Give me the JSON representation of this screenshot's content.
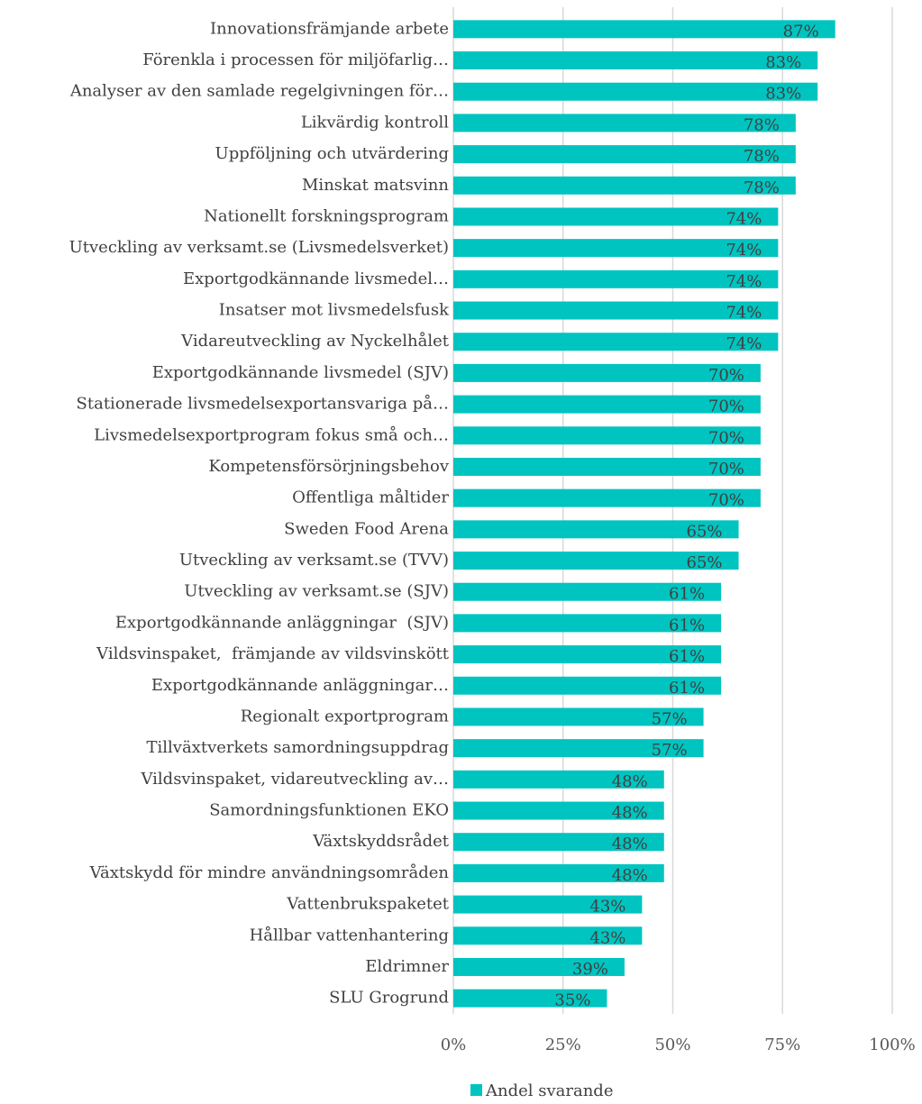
{
  "chart_data": {
    "type": "barh",
    "categories": [
      "Innovationsfrämjande arbete",
      "Förenkla i processen för miljöfarlig…",
      "Analyser av den samlade regelgivningen för…",
      "Likvärdig kontroll",
      "Uppföljning och utvärdering",
      "Minskat matsvinn",
      "Nationellt forskningsprogram",
      "Utveckling av verksamt.se (Livsmedelsverket)",
      "Exportgodkännande livsmedel…",
      "Insatser mot livsmedelsfusk",
      "Vidareutveckling av Nyckelhålet",
      "Exportgodkännande livsmedel (SJV)",
      "Stationerade livsmedelsexportansvariga på…",
      "Livsmedelsexportprogram fokus små och…",
      "Kompetensförsörjningsbehov",
      "Offentliga måltider",
      "Sweden Food Arena",
      "Utveckling av verksamt.se (TVV)",
      "Utveckling av verksamt.se (SJV)",
      "Exportgodkännande anläggningar  (SJV)",
      "Vildsvinspaket,  främjande av vildsvinskött",
      "Exportgodkännande anläggningar…",
      "Regionalt exportprogram",
      "Tillväxtverkets samordningsuppdrag",
      "Vildsvinspaket, vidareutveckling av…",
      "Samordningsfunktionen EKO",
      "Växtskyddsrådet",
      "Växtskydd för mindre användningsområden",
      "Vattenbrukspaketet",
      "Hållbar vattenhantering",
      "Eldrimner",
      "SLU Grogrund"
    ],
    "series": [
      {
        "name": "Andel svarande",
        "color": "#00c4c0",
        "values": [
          87,
          83,
          83,
          78,
          78,
          78,
          74,
          74,
          74,
          74,
          74,
          70,
          70,
          70,
          70,
          70,
          65,
          65,
          61,
          61,
          61,
          61,
          57,
          57,
          48,
          48,
          48,
          48,
          43,
          43,
          39,
          35
        ],
        "value_labels": [
          "87%",
          "83%",
          "83%",
          "78%",
          "78%",
          "78%",
          "74%",
          "74%",
          "74%",
          "74%",
          "74%",
          "70%",
          "70%",
          "70%",
          "70%",
          "70%",
          "65%",
          "65%",
          "61%",
          "61%",
          "61%",
          "61%",
          "57%",
          "57%",
          "48%",
          "48%",
          "48%",
          "48%",
          "43%",
          "43%",
          "39%",
          "35%"
        ]
      }
    ],
    "xlim": [
      0,
      100
    ],
    "xticks": [
      {
        "value": 0,
        "label": "0%"
      },
      {
        "value": 25,
        "label": "25%"
      },
      {
        "value": 50,
        "label": "50%"
      },
      {
        "value": 75,
        "label": "75%"
      },
      {
        "value": 100,
        "label": "100%"
      }
    ],
    "grid": true,
    "legend": "bottom"
  }
}
